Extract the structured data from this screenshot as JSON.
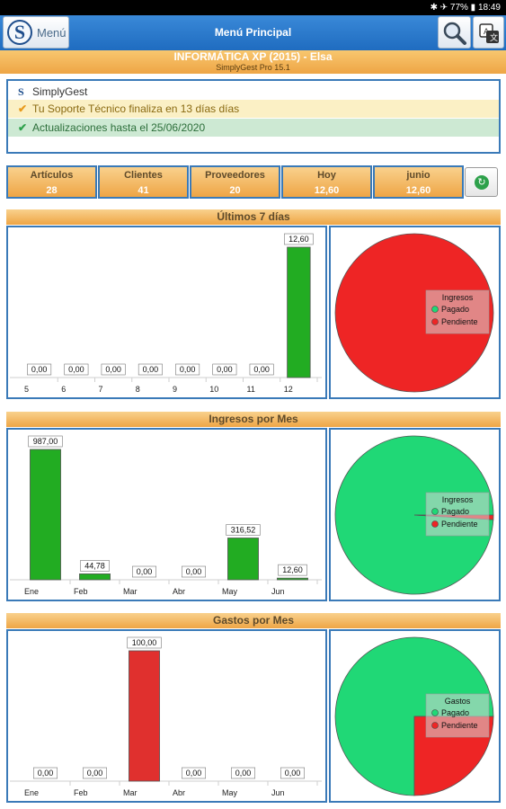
{
  "status_bar": {
    "time_left": "",
    "right": "✱ ✈ 77% ▮ 18:49"
  },
  "app_bar": {
    "menu_label": "Menú",
    "title": "Menú Principal"
  },
  "company": {
    "name": "INFORMÁTICA XP (2015) - Elsa",
    "product": "SimplyGest Pro 15.1"
  },
  "info": {
    "line1": "SimplyGest",
    "line2": "Tu Soporte Técnico finaliza en 13 días días",
    "line3": "Actualizaciones hasta el 25/06/2020"
  },
  "stats": [
    {
      "label": "Artículos",
      "value": "28"
    },
    {
      "label": "Clientes",
      "value": "41"
    },
    {
      "label": "Proveedores",
      "value": "20"
    },
    {
      "label": "Hoy",
      "value": "12,60"
    },
    {
      "label": "junio",
      "value": "12,60"
    }
  ],
  "colors": {
    "green_bar": "#22ac22",
    "red_bar": "#e0302e",
    "paid": "#20d876",
    "pending": "#ee2525",
    "accent": "#3a7ab8"
  },
  "sections": {
    "s1": "Últimos 7 días",
    "s2": "Ingresos por Mes",
    "s3": "Gastos por Mes"
  },
  "chart_data": [
    {
      "type": "bar",
      "title": "Últimos 7 días",
      "categories": [
        "5",
        "6",
        "7",
        "8",
        "9",
        "10",
        "11",
        "12"
      ],
      "values": [
        0,
        0,
        0,
        0,
        0,
        0,
        0,
        12.6
      ],
      "labels": [
        "0,00",
        "0,00",
        "0,00",
        "0,00",
        "0,00",
        "0,00",
        "0,00",
        "12,60"
      ],
      "color": "#22ac22"
    },
    {
      "type": "pie",
      "legend_title": "Ingresos",
      "legend": [
        "Pagado",
        "Pendiente"
      ],
      "values": [
        0,
        12.6
      ]
    },
    {
      "type": "bar",
      "title": "Ingresos por Mes",
      "categories": [
        "Ene",
        "Feb",
        "Mar",
        "Abr",
        "May",
        "Jun"
      ],
      "values": [
        987,
        44.78,
        0,
        0,
        316.52,
        12.6
      ],
      "labels": [
        "987,00",
        "44,78",
        "0,00",
        "0,00",
        "316,52",
        "12,60"
      ],
      "color": "#22ac22"
    },
    {
      "type": "pie",
      "legend_title": "Ingresos",
      "legend": [
        "Pagado",
        "Pendiente"
      ],
      "values": [
        1348.3,
        12.6
      ]
    },
    {
      "type": "bar",
      "title": "Gastos por Mes",
      "categories": [
        "Ene",
        "Feb",
        "Mar",
        "Abr",
        "May",
        "Jun"
      ],
      "values": [
        0,
        0,
        100,
        0,
        0,
        0
      ],
      "labels": [
        "0,00",
        "0,00",
        "100,00",
        "0,00",
        "0,00",
        "0,00"
      ],
      "color": "#e0302e"
    },
    {
      "type": "pie",
      "legend_title": "Gastos",
      "legend": [
        "Pagado",
        "Pendiente"
      ],
      "values": [
        75,
        25
      ]
    }
  ]
}
